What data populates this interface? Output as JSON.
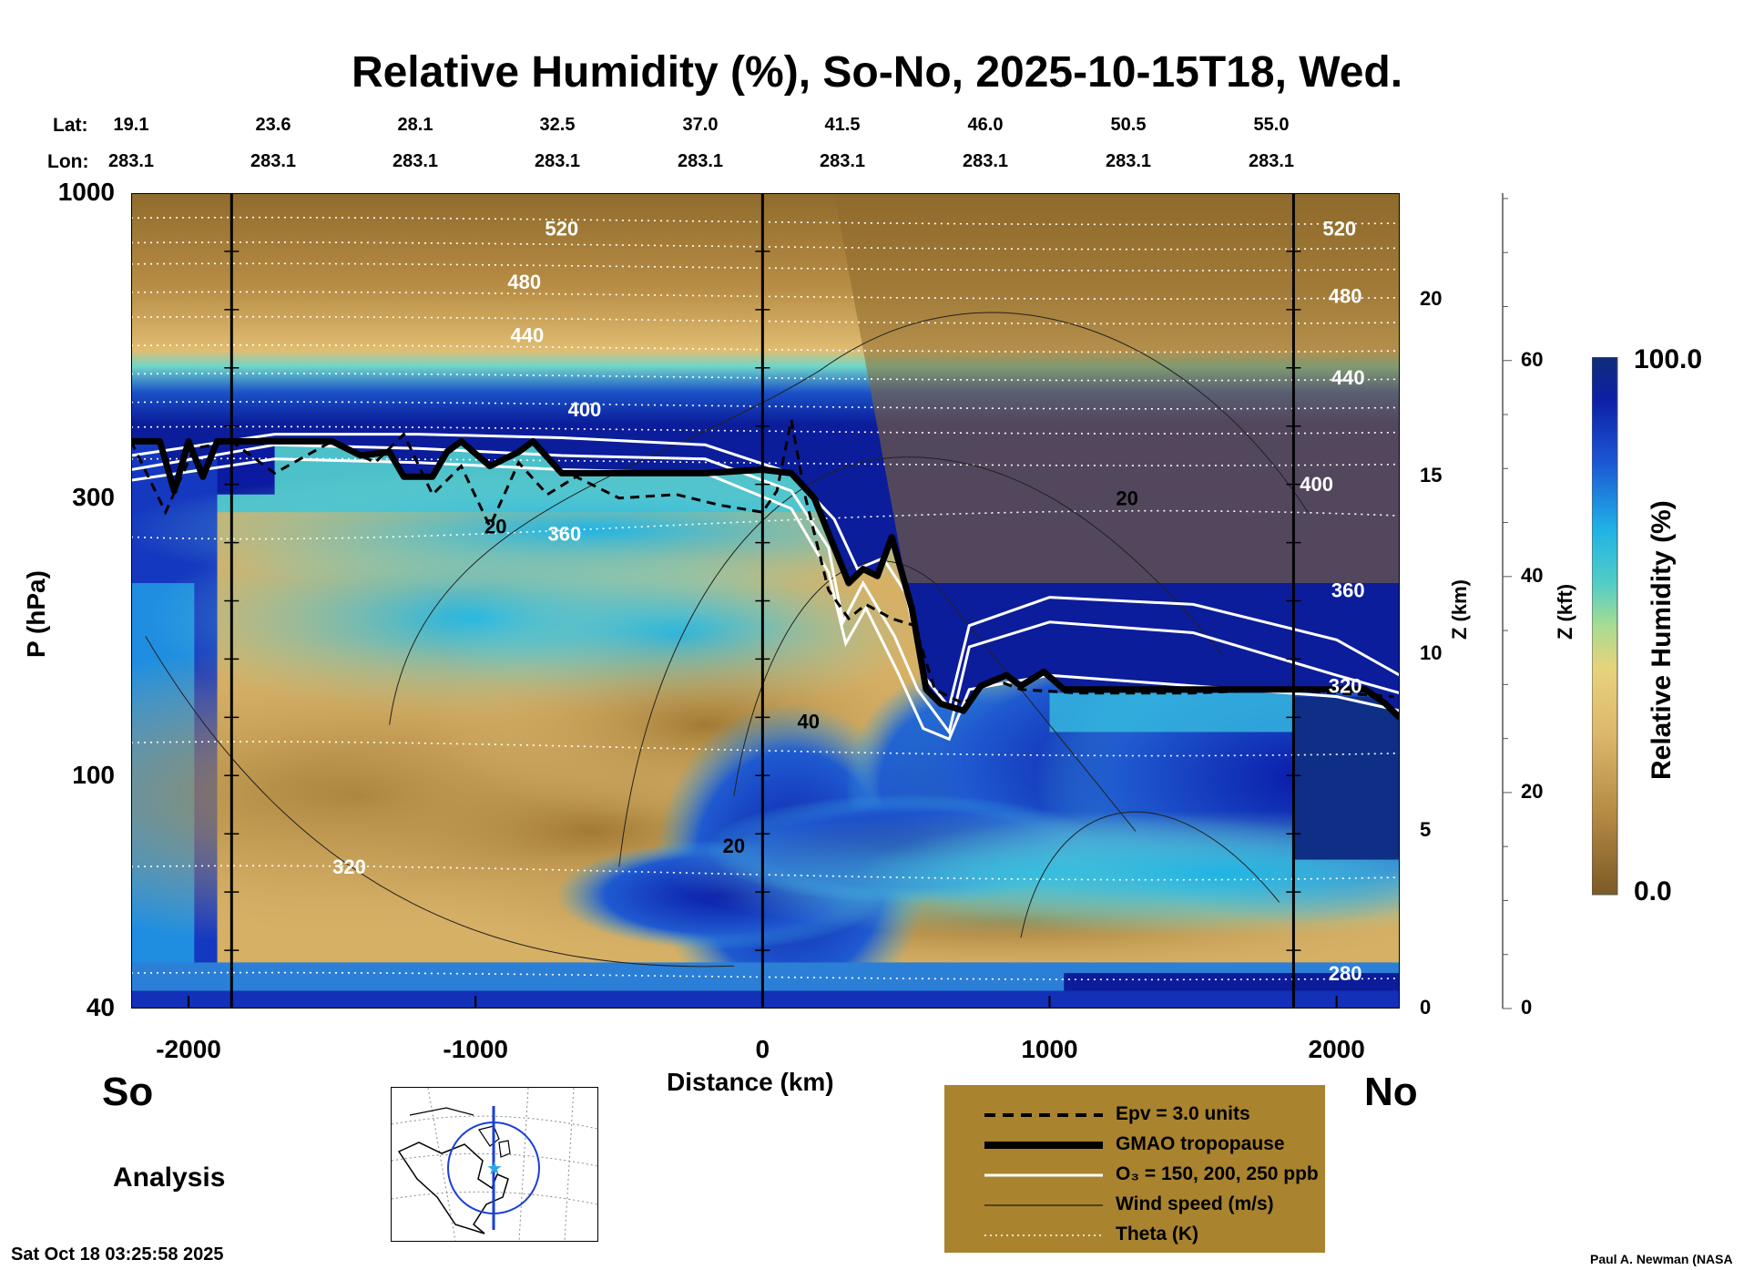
{
  "title": "Relative Humidity (%), So-No, 2025-10-15T18, Wed.",
  "coords": {
    "lat_label": "Lat:",
    "lon_label": "Lon:",
    "lat": [
      "19.1",
      "23.6",
      "28.1",
      "32.5",
      "37.0",
      "41.5",
      "46.0",
      "50.5",
      "55.0"
    ],
    "lon": [
      "283.1",
      "283.1",
      "283.1",
      "283.1",
      "283.1",
      "283.1",
      "283.1",
      "283.1",
      "283.1"
    ]
  },
  "direction": {
    "south": "So",
    "north": "No"
  },
  "analysis_label": "Analysis",
  "timestamp": "Sat Oct 18 03:25:58 2025",
  "credit": "Paul A. Newman (NASA",
  "colorbar": {
    "title": "Relative Humidity (%)",
    "max_label": "100.0",
    "min_label": "0.0"
  },
  "legend": [
    {
      "label": "Epv = 3.0 units",
      "style": "dashed"
    },
    {
      "label": "GMAO tropopause",
      "style": "thick"
    },
    {
      "label": "O₃ = 150, 200, 250 ppb",
      "style": "white"
    },
    {
      "label": "Wind speed (m/s)",
      "style": "thin"
    },
    {
      "label": "Theta (K)",
      "style": "dotted"
    }
  ],
  "colors": {
    "dry": "#7a5a22",
    "mid_dry": "#d8b46a",
    "moist_mid": "#28c2e0",
    "moist": "#0a1fb0",
    "saturated": "#0d2a80",
    "legend_bg": "#a9832e"
  },
  "chart_data": {
    "type": "heatmap",
    "title": "Relative Humidity (%), So-No, 2025-10-15T18, Wed.",
    "xlabel": "Distance (km)",
    "ylabel": "P (hPa)",
    "y2label": "Z (km)",
    "y3label": "Z (kft)",
    "xlim": [
      -2200,
      2220
    ],
    "ylim_hpa": [
      1000,
      40
    ],
    "x_ticks": [
      "-2000",
      "-1000",
      "0",
      "1000",
      "2000"
    ],
    "x_tick_values": [
      -2000,
      -1000,
      0,
      1000,
      2000
    ],
    "y_ticks": [
      "40",
      "100",
      "300",
      "1000"
    ],
    "y_tick_values": [
      40,
      100,
      300,
      1000
    ],
    "z_km_ticks": [
      "0",
      "5",
      "10",
      "15",
      "20"
    ],
    "z_km_values": [
      0,
      5,
      10,
      15,
      20
    ],
    "z_kft_ticks": [
      "0",
      "20",
      "40",
      "60"
    ],
    "z_kft_values": [
      0,
      20,
      40,
      60
    ],
    "vertical_markers_km": [
      -1850,
      0,
      1850
    ],
    "color_range": [
      0,
      100
    ],
    "theta_labels": [
      {
        "text": "520",
        "x": -700,
        "z": 21.8
      },
      {
        "text": "480",
        "x": -830,
        "z": 20.3
      },
      {
        "text": "440",
        "x": -820,
        "z": 18.8
      },
      {
        "text": "400",
        "x": -620,
        "z": 16.7
      },
      {
        "text": "360",
        "x": -690,
        "z": 13.2
      },
      {
        "text": "320",
        "x": -1440,
        "z": 3.8
      },
      {
        "text": "520",
        "x": 2010,
        "z": 21.8
      },
      {
        "text": "480",
        "x": 2030,
        "z": 19.9
      },
      {
        "text": "440",
        "x": 2040,
        "z": 17.6
      },
      {
        "text": "400",
        "x": 1930,
        "z": 14.6
      },
      {
        "text": "360",
        "x": 2040,
        "z": 11.6
      },
      {
        "text": "320",
        "x": 2030,
        "z": 8.9
      },
      {
        "text": "280",
        "x": 2030,
        "z": 0.8
      }
    ],
    "wind_labels": [
      {
        "text": "20",
        "x": -930,
        "z": 13.4
      },
      {
        "text": "20",
        "x": 1270,
        "z": 14.2
      },
      {
        "text": "40",
        "x": 160,
        "z": 7.9
      },
      {
        "text": "20",
        "x": -100,
        "z": 4.4
      }
    ],
    "tropopause_km": [
      [
        -2200,
        16.0
      ],
      [
        -2100,
        16.0
      ],
      [
        -2050,
        14.6
      ],
      [
        -2000,
        16.0
      ],
      [
        -1950,
        15.0
      ],
      [
        -1900,
        16.0
      ],
      [
        -1700,
        16.0
      ],
      [
        -1500,
        16.0
      ],
      [
        -1400,
        15.6
      ],
      [
        -1300,
        15.7
      ],
      [
        -1250,
        15.0
      ],
      [
        -1150,
        15.0
      ],
      [
        -1100,
        15.7
      ],
      [
        -1050,
        16.0
      ],
      [
        -950,
        15.3
      ],
      [
        -850,
        15.7
      ],
      [
        -800,
        16.0
      ],
      [
        -700,
        15.1
      ],
      [
        -400,
        15.1
      ],
      [
        -200,
        15.1
      ],
      [
        0,
        15.2
      ],
      [
        100,
        15.1
      ],
      [
        180,
        14.4
      ],
      [
        250,
        13.0
      ],
      [
        300,
        12.0
      ],
      [
        350,
        12.4
      ],
      [
        400,
        12.2
      ],
      [
        450,
        13.3
      ],
      [
        520,
        11.3
      ],
      [
        570,
        9.0
      ],
      [
        620,
        8.6
      ],
      [
        700,
        8.4
      ],
      [
        760,
        9.1
      ],
      [
        850,
        9.4
      ],
      [
        900,
        9.1
      ],
      [
        980,
        9.5
      ],
      [
        1050,
        9.0
      ],
      [
        1200,
        9.0
      ],
      [
        1500,
        9.0
      ],
      [
        1800,
        9.0
      ],
      [
        2100,
        9.0
      ],
      [
        2170,
        8.6
      ],
      [
        2220,
        8.2
      ]
    ],
    "epv_km": [
      [
        -2200,
        16.0
      ],
      [
        -2080,
        14.0
      ],
      [
        -1980,
        15.8
      ],
      [
        -1850,
        16.0
      ],
      [
        -1700,
        15.1
      ],
      [
        -1500,
        16.0
      ],
      [
        -1350,
        15.4
      ],
      [
        -1250,
        16.2
      ],
      [
        -1150,
        14.5
      ],
      [
        -1050,
        15.3
      ],
      [
        -950,
        13.6
      ],
      [
        -850,
        15.4
      ],
      [
        -750,
        14.5
      ],
      [
        -650,
        15.0
      ],
      [
        -500,
        14.4
      ],
      [
        -300,
        14.5
      ],
      [
        -150,
        14.2
      ],
      [
        0,
        14.0
      ],
      [
        50,
        14.6
      ],
      [
        100,
        16.6
      ],
      [
        150,
        14.4
      ],
      [
        230,
        11.8
      ],
      [
        300,
        11.0
      ],
      [
        360,
        11.4
      ],
      [
        450,
        11.0
      ],
      [
        530,
        10.8
      ],
      [
        600,
        9.0
      ],
      [
        700,
        8.6
      ],
      [
        800,
        9.3
      ],
      [
        900,
        9.0
      ],
      [
        1100,
        8.9
      ],
      [
        1500,
        8.9
      ],
      [
        1800,
        9.0
      ],
      [
        2200,
        8.8
      ]
    ],
    "o3_km": [
      [
        [
          -2200,
          15.6
        ],
        [
          -1700,
          16.2
        ],
        [
          -1200,
          16.2
        ],
        [
          -700,
          16.1
        ],
        [
          -200,
          15.9
        ],
        [
          100,
          15.1
        ],
        [
          250,
          13.8
        ],
        [
          330,
          12.4
        ],
        [
          420,
          12.7
        ],
        [
          500,
          11.7
        ],
        [
          560,
          9.4
        ],
        [
          650,
          8.5
        ],
        [
          720,
          10.8
        ],
        [
          1000,
          11.6
        ],
        [
          1500,
          11.4
        ],
        [
          2000,
          10.4
        ],
        [
          2220,
          9.4
        ]
      ],
      [
        [
          -2200,
          15.2
        ],
        [
          -1700,
          15.9
        ],
        [
          -1200,
          15.8
        ],
        [
          -700,
          15.6
        ],
        [
          -200,
          15.5
        ],
        [
          100,
          14.6
        ],
        [
          230,
          13.0
        ],
        [
          280,
          10.9
        ],
        [
          350,
          12.0
        ],
        [
          460,
          10.5
        ],
        [
          540,
          9.0
        ],
        [
          650,
          7.8
        ],
        [
          720,
          10.2
        ],
        [
          1000,
          10.9
        ],
        [
          1500,
          10.6
        ],
        [
          2000,
          9.4
        ],
        [
          2220,
          8.9
        ]
      ],
      [
        [
          -2200,
          14.9
        ],
        [
          -1700,
          15.5
        ],
        [
          -1200,
          15.4
        ],
        [
          -700,
          15.2
        ],
        [
          -200,
          15.1
        ],
        [
          100,
          14.1
        ],
        [
          230,
          12.3
        ],
        [
          290,
          10.3
        ],
        [
          360,
          11.3
        ],
        [
          470,
          9.5
        ],
        [
          560,
          7.9
        ],
        [
          650,
          7.6
        ],
        [
          720,
          9.0
        ],
        [
          1000,
          9.4
        ],
        [
          1500,
          9.1
        ],
        [
          2000,
          8.8
        ],
        [
          2220,
          8.4
        ]
      ]
    ]
  }
}
